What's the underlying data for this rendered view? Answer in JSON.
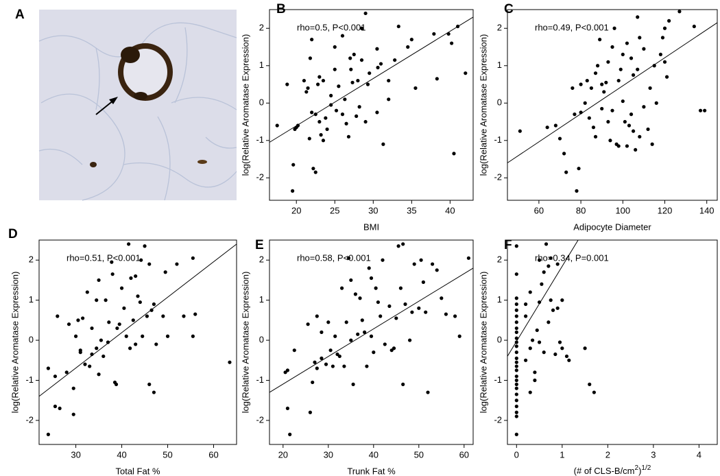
{
  "image_panel": {
    "label": "A"
  },
  "chart_data": [
    {
      "type": "scatter",
      "panel": "B",
      "annotation": "rho=0.5, P<0.001",
      "x_label": "BMI",
      "y_label": "log(Relative Aromatase Expression)",
      "color": "#000000",
      "xlim": [
        16.5,
        43
      ],
      "xticks": [
        20,
        25,
        30,
        35,
        40
      ],
      "ylim": [
        -2.6,
        2.5
      ],
      "yticks": [
        -2,
        -1,
        0,
        1,
        2
      ],
      "fit": {
        "x": [
          16.5,
          43
        ],
        "y": [
          -1.05,
          2.3
        ]
      },
      "x": [
        19.5,
        19.6,
        20.2,
        19.8,
        20.0,
        17.5,
        18.8,
        21,
        21.5,
        21.3,
        22,
        21.8,
        21.7,
        22.2,
        22.5,
        22,
        22.5,
        23,
        23.5,
        23.2,
        22.8,
        23.5,
        23.8,
        24.5,
        24.5,
        25,
        25,
        25.2,
        25.5,
        26,
        26,
        26.5,
        26.3,
        27,
        27.1,
        27.3,
        27.5,
        27.8,
        28,
        28.5,
        28.5,
        29,
        29.3,
        29.5,
        29,
        30.5,
        30.6,
        30.5,
        31,
        31.3,
        32,
        32,
        32.8,
        33.3,
        34.5,
        35,
        35.5,
        37.9,
        38.3,
        39.8,
        40.2,
        40.5,
        41,
        42,
        24,
        23,
        26.8,
        28.2
      ],
      "values": [
        -2.35,
        -1.65,
        -0.6,
        -0.7,
        -0.65,
        -0.6,
        0.5,
        0.6,
        0.4,
        0.3,
        1.7,
        1.2,
        -0.95,
        -1.75,
        -1.85,
        -0.25,
        -0.3,
        -0.5,
        -1,
        -0.85,
        0.5,
        0.6,
        -0.4,
        0.2,
        -0.05,
        0.9,
        1.5,
        -0.2,
        0.45,
        1.8,
        -0.3,
        -0.55,
        0.1,
        1.2,
        0.9,
        0.55,
        1.3,
        -0.35,
        0.6,
        1.15,
        2.0,
        2.4,
        0.5,
        0.8,
        -0.5,
        1.45,
        0.95,
        -0.25,
        1.05,
        -1.1,
        0.6,
        0.1,
        1.15,
        2.05,
        1.5,
        1.7,
        0.4,
        1.85,
        0.65,
        1.85,
        1.6,
        -1.35,
        2.05,
        0.8,
        -0.7,
        0.7,
        -0.9,
        -0.1
      ]
    },
    {
      "type": "scatter",
      "panel": "C",
      "annotation": "rho=0.49, P<0.001",
      "x_label": "Adipocyte Diameter",
      "y_label": "log(Relative Aromatase Expression)",
      "color": "#000000",
      "xlim": [
        45,
        145
      ],
      "xticks": [
        60,
        80,
        100,
        120,
        140
      ],
      "ylim": [
        -2.6,
        2.5
      ],
      "yticks": [
        -2,
        -1,
        0,
        1,
        2
      ],
      "fit": {
        "x": [
          45,
          145
        ],
        "y": [
          -1.6,
          2.15
        ]
      },
      "x": [
        51,
        64,
        68,
        70,
        72,
        73,
        76,
        77,
        78,
        79,
        80,
        80,
        82,
        83,
        84,
        85,
        86,
        87,
        87,
        88,
        89,
        90,
        90,
        91,
        92,
        93,
        93,
        95,
        95,
        96,
        97,
        98,
        99,
        100,
        100,
        101,
        102,
        102,
        103,
        104,
        104,
        105,
        105,
        106,
        107,
        107,
        108,
        108,
        110,
        110,
        112,
        113,
        114,
        115,
        116,
        118,
        119,
        120,
        120,
        121,
        122,
        127,
        134,
        137,
        139,
        94,
        98
      ],
      "values": [
        -0.75,
        -0.65,
        -0.6,
        -0.95,
        -1.35,
        -1.85,
        0.4,
        -0.3,
        -2.35,
        -1.75,
        -0.25,
        0.5,
        0.0,
        0.6,
        -0.4,
        0.4,
        -0.65,
        -0.9,
        0.8,
        1.0,
        1.7,
        0.5,
        -0.15,
        0.3,
        0.55,
        1.1,
        -0.5,
        1.5,
        -0.2,
        2.0,
        -1.1,
        0.6,
        0.9,
        1.3,
        0.05,
        -0.5,
        -1.15,
        1.6,
        -0.6,
        -0.3,
        1.2,
        -0.75,
        0.75,
        -1.25,
        2.3,
        0.9,
        1.75,
        -0.9,
        -0.1,
        1.45,
        -0.7,
        0.4,
        -1.1,
        1.0,
        0.0,
        1.3,
        1.75,
        2.0,
        1.1,
        0.7,
        2.2,
        2.45,
        2.05,
        -0.2,
        -0.2,
        -1.0,
        -1.15
      ]
    },
    {
      "type": "scatter",
      "panel": "D",
      "annotation": "rho=0.51, P<0.001",
      "x_label": "Total Fat %",
      "y_label": "log(Relative Aromatase Expression)",
      "color": "#000000",
      "xlim": [
        22,
        65
      ],
      "xticks": [
        30,
        40,
        50,
        60
      ],
      "ylim": [
        -2.6,
        2.5
      ],
      "yticks": [
        -2,
        -1,
        0,
        1,
        2
      ],
      "fit": {
        "x": [
          22,
          65
        ],
        "y": [
          -1.4,
          2.4
        ]
      },
      "x": [
        24,
        24,
        25.5,
        25.5,
        26.5,
        26,
        28,
        28.5,
        29.5,
        29.5,
        30,
        30.5,
        31,
        31,
        31.5,
        32,
        32.5,
        33,
        33.5,
        33.5,
        34.5,
        34.5,
        35,
        35,
        35.5,
        36,
        36.5,
        37,
        37.2,
        37.8,
        38,
        38.5,
        38.8,
        39.5,
        40,
        40.5,
        41,
        41.5,
        41.8,
        42,
        42.5,
        43,
        43.5,
        44,
        44.2,
        44.5,
        45,
        45.5,
        46,
        46,
        46.5,
        47,
        47,
        47.5,
        49,
        49.5,
        50,
        52,
        53.5,
        55.5,
        55.5,
        56,
        63.5,
        39,
        43
      ],
      "values": [
        -0.7,
        -2.35,
        -0.9,
        -1.65,
        -1.7,
        0.6,
        -0.8,
        0.4,
        -1.85,
        -1.2,
        0.1,
        0.5,
        -0.25,
        -0.3,
        0.55,
        -0.6,
        1.2,
        -0.65,
        0.3,
        -0.35,
        -0.2,
        1.0,
        1.5,
        -0.85,
        0.0,
        -0.4,
        1.0,
        -0.05,
        0.45,
        1.95,
        1.65,
        -1.05,
        -1.1,
        0.4,
        1.3,
        0.8,
        0.1,
        2.4,
        -0.2,
        1.55,
        0.5,
        1.6,
        1.1,
        0.95,
        2.0,
        0.1,
        2.35,
        0.6,
        1.9,
        -1.1,
        0.75,
        0.9,
        -1.3,
        -0.1,
        0.6,
        1.7,
        0.1,
        1.9,
        0.6,
        2.05,
        0.1,
        0.65,
        -0.55,
        0.3,
        -0.1
      ]
    },
    {
      "type": "scatter",
      "panel": "E",
      "annotation": "rho=0.58, P<0.001",
      "x_label": "Trunk Fat %",
      "y_label": "log(Relative Aromatase Expression)",
      "color": "#000000",
      "xlim": [
        17,
        62
      ],
      "xticks": [
        20,
        30,
        40,
        50,
        60
      ],
      "ylim": [
        -2.6,
        2.5
      ],
      "yticks": [
        -2,
        -1,
        0,
        1,
        2
      ],
      "fit": {
        "x": [
          17,
          62
        ],
        "y": [
          -1.3,
          1.8
        ]
      },
      "x": [
        20.5,
        21,
        21,
        21.5,
        22.5,
        25.5,
        26,
        26.5,
        27,
        27.5,
        27.5,
        28.5,
        28.5,
        29.5,
        30,
        30.5,
        31,
        31.5,
        32,
        32.5,
        33,
        33.5,
        34,
        34.5,
        35,
        35,
        35.5,
        36,
        36.5,
        37,
        37.5,
        38,
        38.5,
        39,
        39.5,
        39.5,
        40,
        40.5,
        41,
        41.5,
        42,
        42.5,
        43.5,
        44,
        44.5,
        45,
        45.5,
        46,
        46.5,
        46.5,
        47,
        48,
        48.5,
        49,
        50,
        50.5,
        51,
        51.5,
        52,
        53,
        54,
        55,
        56,
        58,
        59,
        61
      ],
      "values": [
        -0.8,
        -0.75,
        -1.7,
        -2.35,
        -0.25,
        0.4,
        -1.8,
        -1.05,
        -0.55,
        0.6,
        -0.7,
        0.2,
        -0.45,
        -0.6,
        0.45,
        -0.25,
        -0.65,
        0.1,
        -0.35,
        -0.4,
        1.3,
        -0.65,
        0.45,
        2.05,
        1.5,
        0.0,
        -1.1,
        1.15,
        0.15,
        1.05,
        0.5,
        0.2,
        -0.65,
        1.8,
        1.55,
        0.1,
        -0.3,
        1.3,
        0.95,
        0.6,
        2.0,
        -0.1,
        0.85,
        -0.25,
        -0.2,
        0.55,
        2.35,
        1.3,
        -1.1,
        2.4,
        0.9,
        0.0,
        0.7,
        1.9,
        0.8,
        2.0,
        1.45,
        0.7,
        -1.3,
        1.9,
        1.75,
        1.05,
        0.65,
        0.6,
        0.1,
        2.05
      ]
    },
    {
      "type": "scatter",
      "panel": "F",
      "annotation": "rho=0.34, P=0.001",
      "x_label": [
        "(# of CLS-B/cm",
        "2",
        ")",
        "1/2"
      ],
      "y_label": "log(Relative Aromatase Expression)",
      "color": "#000000",
      "xlim": [
        -0.2,
        4.4
      ],
      "xticks": [
        0,
        1,
        2,
        3,
        4
      ],
      "ylim": [
        -2.6,
        2.5
      ],
      "yticks": [
        -2,
        -1,
        0,
        1,
        2
      ],
      "fit": {
        "x": [
          -0.2,
          1.35
        ],
        "y": [
          -0.4,
          2.5
        ]
      },
      "x": [
        0,
        0,
        0,
        0,
        0,
        0,
        0,
        0,
        0,
        0,
        0,
        0,
        0,
        0,
        0,
        0,
        0,
        0,
        0,
        0,
        0,
        0,
        0,
        0,
        0,
        0,
        0,
        0.2,
        0.2,
        0.2,
        0.3,
        0.3,
        0.35,
        0.4,
        0.4,
        0.45,
        0.5,
        0.5,
        0.5,
        0.55,
        0.6,
        0.6,
        0.65,
        0.7,
        0.7,
        0.75,
        0.75,
        0.8,
        0.85,
        0.9,
        0.9,
        0.95,
        1.0,
        1.0,
        1.1,
        1.15,
        1.5,
        1.6,
        1.7,
        0.3
      ],
      "values": [
        2.35,
        1.65,
        1.05,
        0.9,
        0.75,
        0.6,
        0.45,
        0.3,
        0.2,
        0.05,
        -0.05,
        -0.15,
        -0.3,
        -0.45,
        -0.55,
        -0.65,
        -0.75,
        -0.9,
        -1.0,
        -1.1,
        -1.2,
        -1.35,
        -1.5,
        -1.65,
        -1.8,
        -1.9,
        -2.35,
        0.6,
        -0.5,
        0.9,
        1.2,
        -0.2,
        0.0,
        -0.8,
        -1.0,
        0.25,
        2.0,
        0.95,
        -0.05,
        1.4,
        1.7,
        -0.3,
        2.4,
        1.85,
        0.45,
        2.05,
        1.0,
        0.75,
        -0.35,
        0.8,
        1.9,
        -0.05,
        1.0,
        -0.2,
        -0.4,
        -0.5,
        -0.2,
        -1.1,
        -1.3,
        -1.3
      ]
    }
  ]
}
